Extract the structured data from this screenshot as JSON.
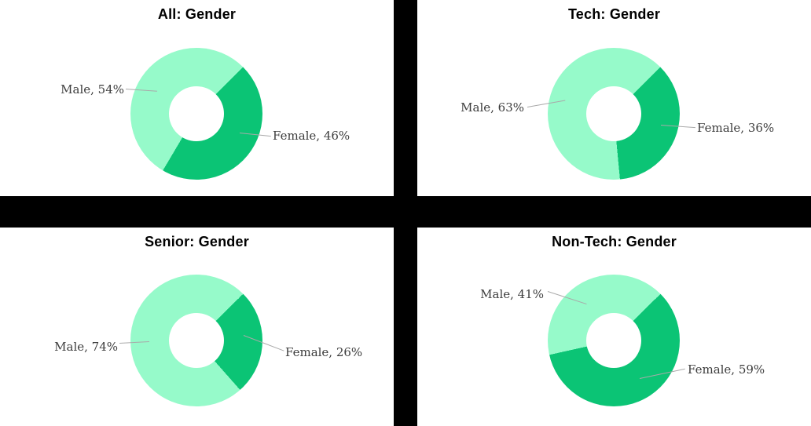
{
  "page": {
    "background": "#ffffff",
    "divider_color": "#000000"
  },
  "palette": {
    "male_color": "#96FACA",
    "female_color": "#0BC475",
    "leader_line_color": "#A9A9A9",
    "label_text_color": "#3D3D3D",
    "title_color": "#000000"
  },
  "chart_data": [
    {
      "type": "pie",
      "subtype": "donut",
      "title": "All: Gender",
      "categories": [
        "Male",
        "Female"
      ],
      "values": [
        54,
        46
      ],
      "unit": "%",
      "labels": [
        "Male, 54%",
        "Female, 46%"
      ],
      "colors": [
        "#96FACA",
        "#0BC475"
      ],
      "legend": "none",
      "female_start_deg_clockwise_from_top": 45
    },
    {
      "type": "pie",
      "subtype": "donut",
      "title": "Tech: Gender",
      "categories": [
        "Male",
        "Female"
      ],
      "values": [
        63,
        36
      ],
      "unit": "%",
      "labels": [
        "Male, 63%",
        "Female, 36%"
      ],
      "colors": [
        "#96FACA",
        "#0BC475"
      ],
      "legend": "none",
      "female_start_deg_clockwise_from_top": 45
    },
    {
      "type": "pie",
      "subtype": "donut",
      "title": "Senior: Gender",
      "categories": [
        "Male",
        "Female"
      ],
      "values": [
        74,
        26
      ],
      "unit": "%",
      "labels": [
        "Male, 74%",
        "Female, 26%"
      ],
      "colors": [
        "#96FACA",
        "#0BC475"
      ],
      "legend": "none",
      "female_start_deg_clockwise_from_top": 45
    },
    {
      "type": "pie",
      "subtype": "donut",
      "title": "Non-Tech: Gender",
      "categories": [
        "Male",
        "Female"
      ],
      "values": [
        41,
        59
      ],
      "unit": "%",
      "labels": [
        "Male, 41%",
        "Female, 59%"
      ],
      "colors": [
        "#96FACA",
        "#0BC475"
      ],
      "legend": "none",
      "female_start_deg_clockwise_from_top": 45
    }
  ]
}
